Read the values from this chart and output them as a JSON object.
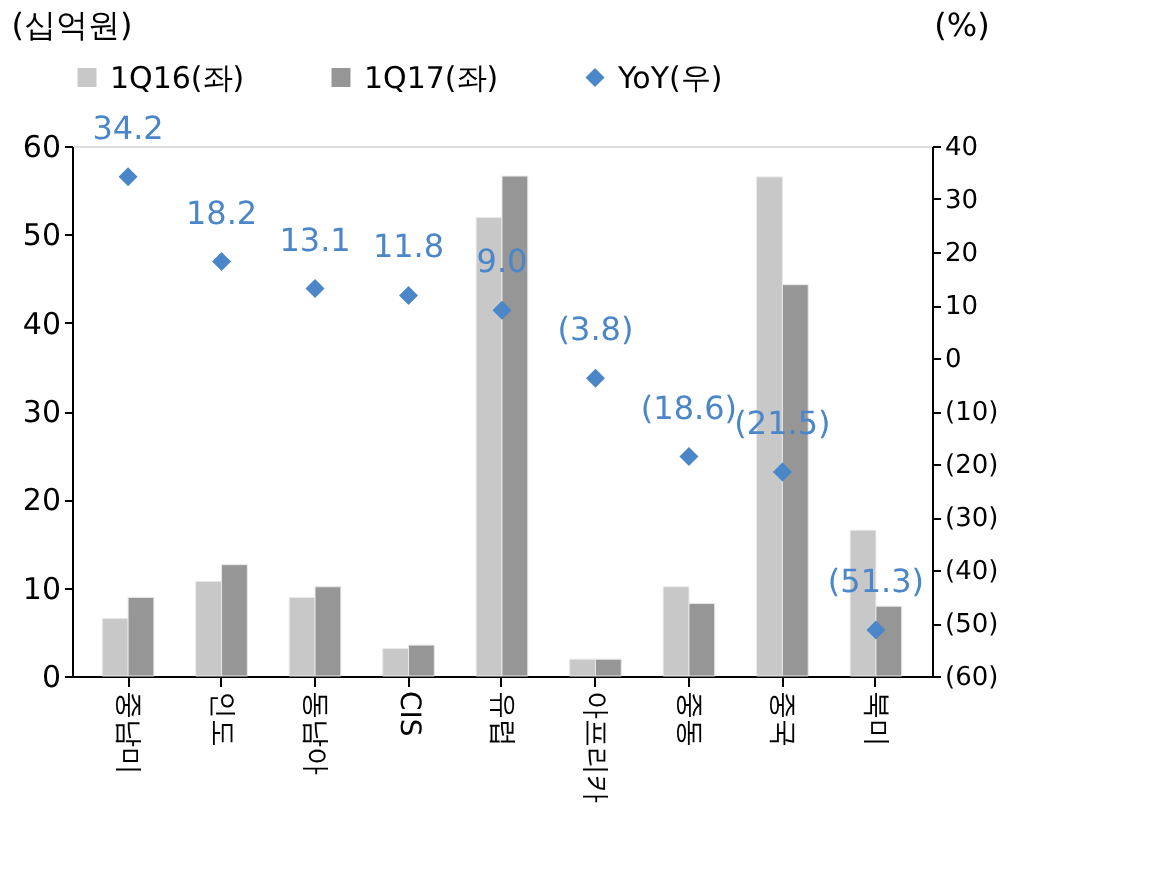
{
  "chart_data": {
    "type": "bar",
    "ylabel": "(십억원)",
    "y2label": "(%)",
    "categories": [
      "중남미",
      "인도",
      "동남아",
      "CIS",
      "유럽",
      "아프리카",
      "중동",
      "중국",
      "북미"
    ],
    "series": [
      {
        "name": "1Q16(좌)",
        "color": "#c8c8c8",
        "values": [
          6.5,
          10.7,
          8.9,
          3.1,
          51.9,
          1.9,
          10.1,
          56.5,
          16.5
        ]
      },
      {
        "name": "1Q17(좌)",
        "color": "#969696",
        "values": [
          8.9,
          12.6,
          10.1,
          3.5,
          56.6,
          1.9,
          8.2,
          44.3,
          7.9
        ]
      },
      {
        "name": "YoY(우)",
        "type": "scatter",
        "axis": "y2",
        "marker": "diamond",
        "color": "#4a86c8",
        "values": [
          34.2,
          18.2,
          13.1,
          11.8,
          9.0,
          -3.8,
          -18.6,
          -21.5,
          -51.3
        ],
        "value_labels": [
          "34.2",
          "18.2",
          "13.1",
          "11.8",
          "9.0",
          "(3.8)",
          "(18.6)",
          "(21.5)",
          "(51.3)"
        ]
      }
    ],
    "ylim": [
      0,
      60
    ],
    "yticks": [
      0,
      10,
      20,
      30,
      40,
      50,
      60
    ],
    "y2lim": [
      -60,
      40
    ],
    "y2ticks": [
      {
        "value": -60,
        "label": "(60)"
      },
      {
        "value": -50,
        "label": "(50)"
      },
      {
        "value": -40,
        "label": "(40)"
      },
      {
        "value": -30,
        "label": "(30)"
      },
      {
        "value": -20,
        "label": "(20)"
      },
      {
        "value": -10,
        "label": "(10)"
      },
      0,
      10,
      20,
      30,
      40
    ],
    "legend": "top",
    "grid": false
  }
}
